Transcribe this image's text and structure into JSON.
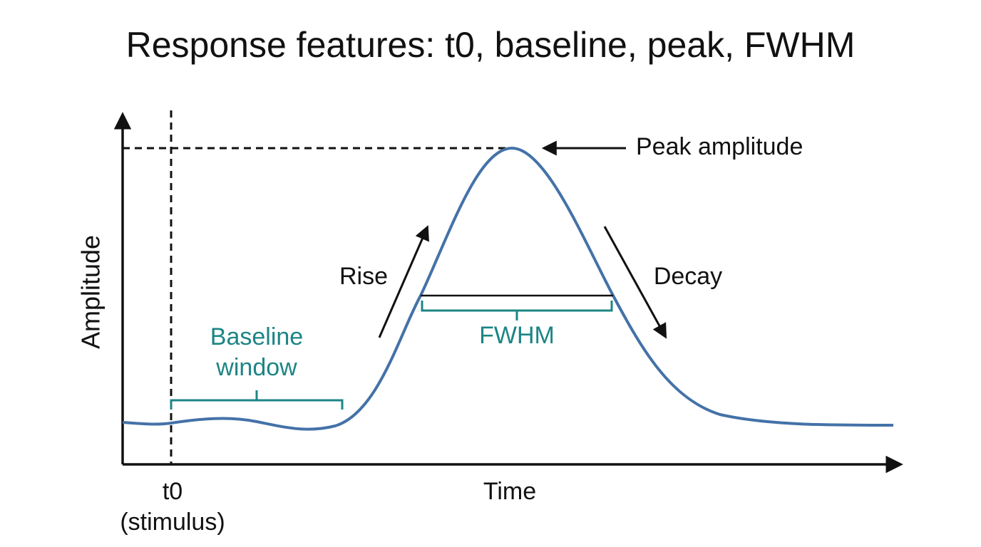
{
  "title": "Response features: t0, baseline, peak, FWHM",
  "y_axis_label": "Amplitude",
  "x_axis_label": "Time",
  "t0_label": [
    "t0",
    "(stimulus)"
  ],
  "annotations": {
    "peak": "Peak amplitude",
    "rise": "Rise",
    "decay": "Decay",
    "fwhm": "FWHM",
    "baseline_window": [
      "Baseline",
      "window"
    ]
  }
}
